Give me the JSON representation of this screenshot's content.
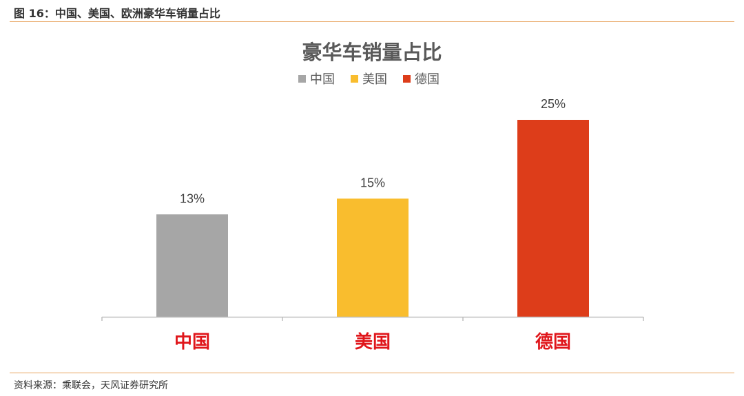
{
  "figure": {
    "caption": "图 16：中国、美国、欧洲豪华车销量占比",
    "source": "资料来源：乘联会，天风证券研究所"
  },
  "colors": {
    "rule": "#e8a25c",
    "axis": "#bfbfbf",
    "category_label": "#e0161b"
  },
  "chart_data": {
    "type": "bar",
    "title": "豪华车销量占比",
    "categories": [
      "中国",
      "美国",
      "德国"
    ],
    "series": [
      {
        "name": "中国",
        "color": "#a6a6a6"
      },
      {
        "name": "美国",
        "color": "#f9bd2e"
      },
      {
        "name": "德国",
        "color": "#dd3d1a"
      }
    ],
    "values": [
      13,
      15,
      25
    ],
    "value_labels": [
      "13%",
      "15%",
      "25%"
    ],
    "unit": "%",
    "ylim": [
      0,
      25
    ],
    "grid": false,
    "legend": "top-center",
    "xlabel": "",
    "ylabel": ""
  }
}
